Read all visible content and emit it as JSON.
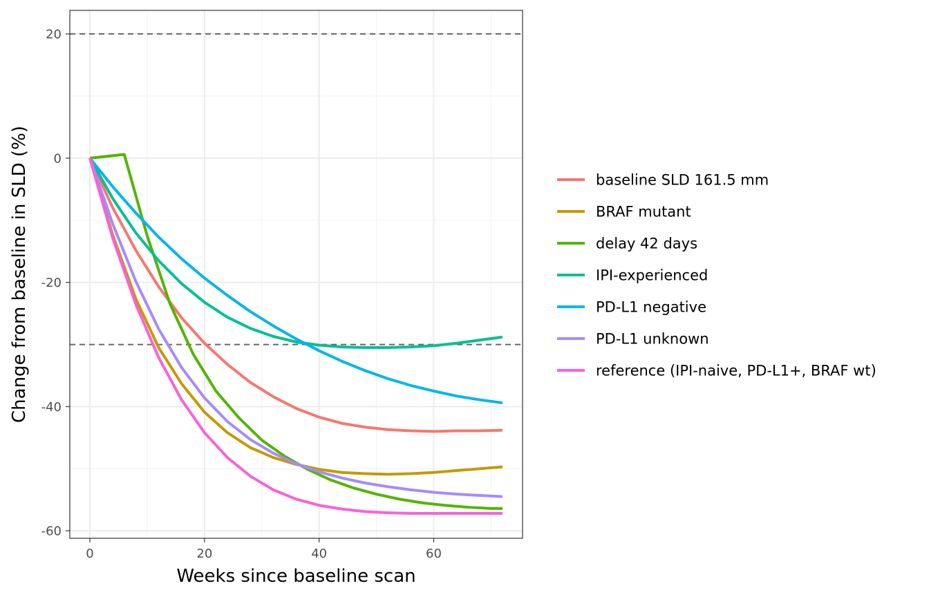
{
  "chart_data": {
    "type": "line",
    "title": "",
    "xlabel": "Weeks since baseline scan",
    "ylabel": "Change from baseline in SLD (%)",
    "xlim": [
      -3.5,
      75.5
    ],
    "ylim": [
      -61.2,
      23.8
    ],
    "x_ticks": [
      0,
      20,
      40,
      60
    ],
    "y_ticks": [
      -60,
      -40,
      -20,
      0,
      20
    ],
    "grid": true,
    "legend_position": "right",
    "reference_lines": [
      20,
      -30
    ],
    "series": [
      {
        "name": "baseline SLD 161.5 mm",
        "color": "#F8766D",
        "x": [
          0,
          4,
          8,
          12,
          16,
          20,
          24,
          28,
          32,
          36,
          40,
          44,
          48,
          52,
          56,
          60,
          64,
          68,
          72
        ],
        "y": [
          0,
          -8,
          -14.8,
          -20.7,
          -25.7,
          -29.8,
          -33.2,
          -36.1,
          -38.4,
          -40.3,
          -41.7,
          -42.7,
          -43.3,
          -43.7,
          -43.9,
          -44,
          -43.9,
          -43.9,
          -43.8
        ]
      },
      {
        "name": "BRAF mutant",
        "color": "#C49A00",
        "x": [
          0,
          4,
          8,
          12,
          16,
          20,
          24,
          28,
          32,
          36,
          40,
          44,
          48,
          52,
          56,
          60,
          64,
          68,
          72
        ],
        "y": [
          0,
          -12.4,
          -22.6,
          -30.5,
          -36.3,
          -40.9,
          -44.2,
          -46.6,
          -48.2,
          -49.3,
          -50.1,
          -50.6,
          -50.8,
          -50.9,
          -50.8,
          -50.6,
          -50.3,
          -50,
          -49.7
        ]
      },
      {
        "name": "delay 42 days",
        "color": "#53B400",
        "x": [
          0,
          6,
          10,
          14,
          18,
          22,
          26,
          30,
          34,
          38,
          42,
          46,
          50,
          54,
          58,
          62,
          66,
          70,
          72
        ],
        "y": [
          0,
          0.6,
          -12.5,
          -23.5,
          -31.5,
          -37.5,
          -41.8,
          -45.4,
          -48,
          -50.1,
          -51.8,
          -53.1,
          -54.1,
          -54.9,
          -55.5,
          -55.9,
          -56.2,
          -56.4,
          -56.4
        ]
      },
      {
        "name": "IPI-experienced",
        "color": "#00C094",
        "x": [
          0,
          4,
          8,
          12,
          16,
          20,
          24,
          28,
          32,
          36,
          40,
          44,
          48,
          52,
          56,
          60,
          64,
          68,
          72
        ],
        "y": [
          0,
          -6.5,
          -12,
          -16.5,
          -20.2,
          -23.2,
          -25.6,
          -27.4,
          -28.7,
          -29.6,
          -30.1,
          -30.4,
          -30.5,
          -30.5,
          -30.4,
          -30.2,
          -29.8,
          -29.3,
          -28.8
        ]
      },
      {
        "name": "PD-L1 negative",
        "color": "#00B6EB",
        "x": [
          0,
          4,
          8,
          12,
          16,
          20,
          24,
          28,
          32,
          36,
          40,
          44,
          48,
          52,
          56,
          60,
          64,
          68,
          72
        ],
        "y": [
          0,
          -4.6,
          -8.8,
          -12.7,
          -16.2,
          -19.3,
          -22.1,
          -24.7,
          -27,
          -29.1,
          -31,
          -32.7,
          -34.2,
          -35.5,
          -36.6,
          -37.5,
          -38.3,
          -38.9,
          -39.4
        ]
      },
      {
        "name": "PD-L1 unknown",
        "color": "#A58AFF",
        "x": [
          0,
          4,
          8,
          12,
          16,
          20,
          24,
          28,
          32,
          36,
          40,
          44,
          48,
          52,
          56,
          60,
          64,
          68,
          72
        ],
        "y": [
          0,
          -10.6,
          -19.8,
          -27.5,
          -33.7,
          -38.6,
          -42.4,
          -45.3,
          -47.5,
          -49.2,
          -50.5,
          -51.5,
          -52.3,
          -52.9,
          -53.4,
          -53.8,
          -54.1,
          -54.3,
          -54.5
        ]
      },
      {
        "name": "reference (IPI-naive, PD-L1+, BRAF wt)",
        "color": "#FB61D7",
        "x": [
          0,
          4,
          8,
          12,
          16,
          20,
          24,
          28,
          32,
          36,
          40,
          44,
          48,
          52,
          56,
          60,
          64,
          68,
          72
        ],
        "y": [
          0,
          -12.9,
          -23.5,
          -32.1,
          -38.9,
          -44.2,
          -48.2,
          -51.2,
          -53.4,
          -54.9,
          -55.9,
          -56.5,
          -56.9,
          -57.1,
          -57.2,
          -57.2,
          -57.2,
          -57.2,
          -57.2
        ]
      }
    ]
  }
}
